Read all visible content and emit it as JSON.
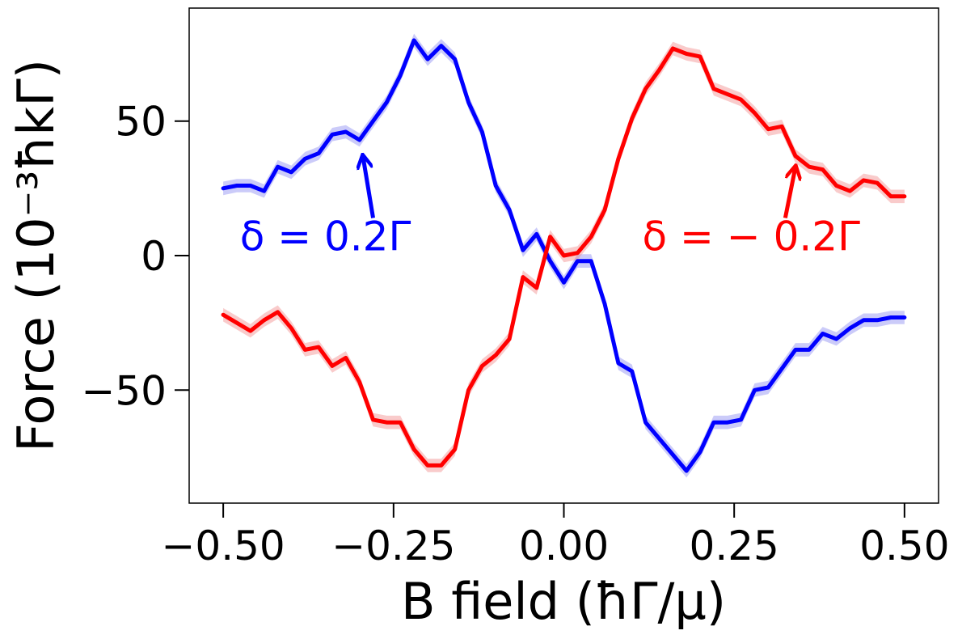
{
  "chart_data": {
    "type": "line",
    "title": "",
    "xlabel": "B field (ħΓ/μ)",
    "ylabel": "Force (10⁻³ħkΓ)",
    "xlim": [
      -0.55,
      0.55
    ],
    "ylim": [
      -92,
      92
    ],
    "xticks": [
      -0.5,
      -0.25,
      0.0,
      0.25,
      0.5
    ],
    "xtick_labels": [
      "−0.50",
      "−0.25",
      "0.00",
      "0.25",
      "0.50"
    ],
    "yticks": [
      -50,
      0,
      50
    ],
    "ytick_labels": [
      "−50",
      "0",
      "50"
    ],
    "grid": false,
    "x": [
      -0.5,
      -0.48,
      -0.46,
      -0.44,
      -0.42,
      -0.4,
      -0.38,
      -0.36,
      -0.34,
      -0.32,
      -0.3,
      -0.28,
      -0.26,
      -0.24,
      -0.22,
      -0.2,
      -0.18,
      -0.16,
      -0.14,
      -0.12,
      -0.1,
      -0.08,
      -0.06,
      -0.04,
      -0.02,
      0.0,
      0.02,
      0.04,
      0.06,
      0.08,
      0.1,
      0.12,
      0.14,
      0.16,
      0.18,
      0.2,
      0.22,
      0.24,
      0.26,
      0.28,
      0.3,
      0.32,
      0.34,
      0.36,
      0.38,
      0.4,
      0.42,
      0.44,
      0.46,
      0.48,
      0.5
    ],
    "series": [
      {
        "name": "δ = 0.2Γ",
        "color": "#0000ff",
        "band_color": "#8c8cf2",
        "values": [
          25,
          26,
          26,
          24,
          33,
          31,
          36,
          38,
          45,
          46,
          43,
          50,
          57,
          67,
          80,
          73,
          78,
          73,
          57,
          46,
          26,
          17,
          2,
          8,
          -2,
          -10,
          -2,
          -2,
          -18,
          -40,
          -43,
          -62,
          -68,
          -74,
          -80,
          -73,
          -62,
          -62,
          -61,
          -50,
          -49,
          -42,
          -35,
          -35,
          -29,
          -31,
          -27,
          -24,
          -24,
          -23,
          -23
        ],
        "uncertainty": 2.5
      },
      {
        "name": "δ = −0.2Γ",
        "color": "#ff0000",
        "band_color": "#f28c8c",
        "values": [
          -22,
          -25,
          -28,
          -24,
          -21,
          -27,
          -35,
          -34,
          -41,
          -38,
          -47,
          -61,
          -62,
          -62,
          -72,
          -78,
          -78,
          -72,
          -50,
          -41,
          -37,
          -31,
          -8,
          -12,
          7,
          0,
          1,
          7,
          17,
          36,
          51,
          62,
          69,
          77,
          75,
          74,
          62,
          60,
          58,
          53,
          47,
          48,
          37,
          33,
          32,
          26,
          24,
          28,
          27,
          22,
          22
        ],
        "uncertainty": 2.5
      }
    ],
    "annotations": [
      {
        "text": "δ = 0.2Γ",
        "color": "#0000ff",
        "text_x": -0.35,
        "text_y": 2,
        "arrow_from": [
          -0.28,
          14
        ],
        "arrow_to": [
          -0.295,
          37
        ]
      },
      {
        "text": "δ = − 0.2Γ",
        "color": "#ff0000",
        "text_x": 0.275,
        "text_y": 2,
        "arrow_from": [
          0.325,
          14
        ],
        "arrow_to": [
          0.34,
          33
        ]
      }
    ]
  }
}
